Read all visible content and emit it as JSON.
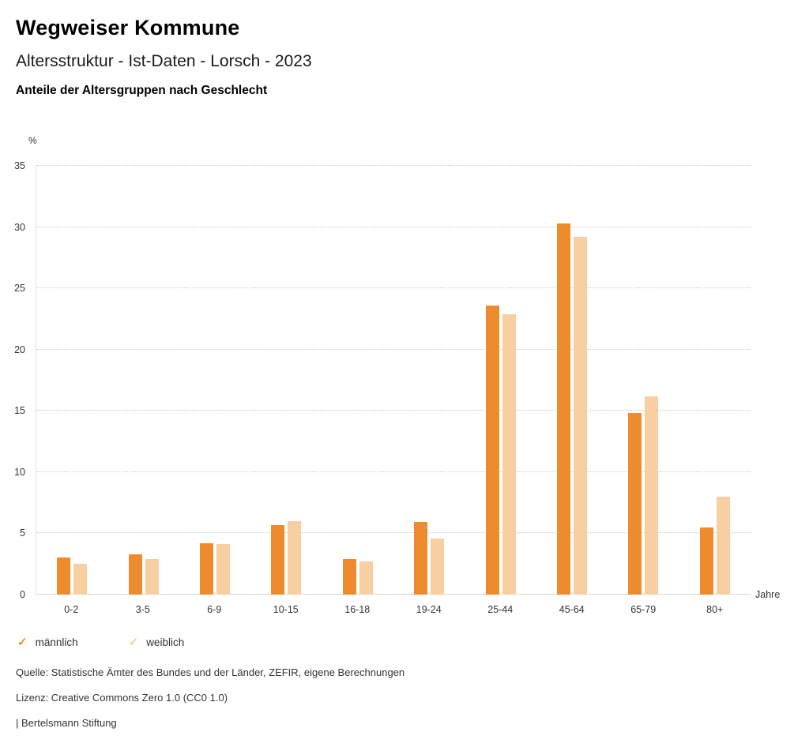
{
  "header": {
    "title": "Wegweiser Kommune",
    "subtitle": "Altersstruktur - Ist-Daten - Lorsch - 2023",
    "chart_heading": "Anteile der Altersgruppen nach Geschlecht"
  },
  "chart_data": {
    "type": "bar",
    "title": "Anteile der Altersgruppen nach Geschlecht",
    "ylabel": "%",
    "xlabel": "Jahre",
    "ylim": [
      0,
      35
    ],
    "yticks": [
      0,
      5,
      10,
      15,
      20,
      25,
      30,
      35
    ],
    "grid": "dotted-horizontal",
    "legend_position": "bottom-left",
    "categories": [
      "0-2",
      "3-5",
      "6-9",
      "10-15",
      "16-18",
      "19-24",
      "25-44",
      "45-64",
      "65-79",
      "80+"
    ],
    "series": [
      {
        "name": "männlich",
        "key": "maennlich",
        "color": "#ED8B2D",
        "values": [
          3.0,
          3.3,
          4.2,
          5.7,
          2.9,
          5.9,
          23.6,
          30.3,
          14.8,
          5.5
        ]
      },
      {
        "name": "weiblich",
        "key": "weiblich",
        "color": "#F7CFA0",
        "values": [
          2.5,
          2.9,
          4.1,
          6.0,
          2.7,
          4.6,
          22.9,
          29.2,
          16.2,
          8.0
        ]
      }
    ]
  },
  "legend": {
    "items": [
      {
        "label": "männlich",
        "key": "maennlich",
        "color": "#ED8B2D",
        "check": "✓"
      },
      {
        "label": "weiblich",
        "key": "weiblich",
        "color": "#F7CFA0",
        "check": "✓"
      }
    ]
  },
  "footer": {
    "source": "Quelle: Statistische Ämter des Bundes und der Länder, ZEFIR, eigene Berechnungen",
    "license": "Lizenz: Creative Commons Zero 1.0 (CC0 1.0)",
    "attribution": "| Bertelsmann Stiftung"
  }
}
